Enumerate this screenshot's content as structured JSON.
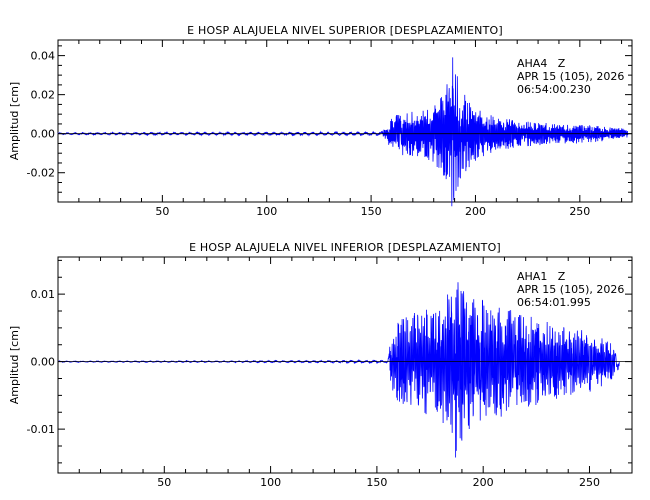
{
  "chart_data": [
    {
      "type": "line",
      "title": "E HOSP ALAJUELA NIVEL SUPERIOR [DESPLAZAMIENTO]",
      "ylabel": "Amplitud [cm]",
      "xlabel": "",
      "xlim": [
        0,
        275
      ],
      "ylim": [
        -0.035,
        0.048
      ],
      "xticks": [
        50,
        100,
        150,
        200,
        250
      ],
      "xtick_labels": [
        "50",
        "100",
        "150",
        "200",
        "250"
      ],
      "yticks": [
        0.04,
        0.02,
        0.0,
        -0.02
      ],
      "ytick_labels": [
        "0.04",
        "0.02",
        "0.00",
        "-0.02"
      ],
      "annotation": [
        "AHA4   Z",
        "APR 15 (105), 2026",
        "06:54:00.230"
      ],
      "line_color": "#0000ff",
      "grid": false,
      "series": [
        {
          "x": [
            0,
            20,
            40,
            60,
            80,
            100,
            120,
            140,
            155,
            158,
            160,
            165,
            170,
            175,
            180,
            185,
            188,
            189,
            190,
            192,
            195,
            200,
            205,
            210,
            220,
            230,
            240,
            250,
            260,
            270,
            273
          ],
          "envelope": [
            0.0005,
            0.0006,
            0.0007,
            0.0007,
            0.0008,
            0.0008,
            0.0009,
            0.0009,
            0.001,
            0.005,
            0.009,
            0.011,
            0.012,
            0.013,
            0.015,
            0.022,
            0.03,
            0.046,
            0.034,
            0.028,
            0.02,
            0.014,
            0.011,
            0.009,
            0.007,
            0.006,
            0.005,
            0.005,
            0.004,
            0.003,
            0.002
          ]
        }
      ]
    },
    {
      "type": "line",
      "title": "E HOSP ALAJUELA NIVEL INFERIOR [DESPLAZAMIENTO]",
      "ylabel": "Amplitud [cm]",
      "xlabel": "",
      "xlim": [
        0,
        270
      ],
      "ylim": [
        -0.0165,
        0.0155
      ],
      "xticks": [
        50,
        100,
        150,
        200,
        250
      ],
      "xtick_labels": [
        "50",
        "100",
        "150",
        "200",
        "250"
      ],
      "yticks": [
        0.01,
        0.0,
        -0.01
      ],
      "ytick_labels": [
        "0.01",
        "0.00",
        "-0.01"
      ],
      "annotation": [
        "AHA1   Z",
        "APR 15 (105), 2026",
        "06:54:01.995"
      ],
      "line_color": "#0000ff",
      "grid": false,
      "series": [
        {
          "x": [
            0,
            20,
            40,
            60,
            80,
            100,
            120,
            140,
            155,
            157,
            160,
            165,
            170,
            175,
            180,
            185,
            187,
            188,
            190,
            195,
            200,
            210,
            220,
            230,
            240,
            250,
            260,
            264
          ],
          "envelope": [
            0.0001,
            0.0001,
            0.0001,
            0.00012,
            0.00012,
            0.00015,
            0.00015,
            0.0002,
            0.0002,
            0.004,
            0.006,
            0.007,
            0.0075,
            0.008,
            0.009,
            0.011,
            0.0145,
            0.015,
            0.012,
            0.01,
            0.009,
            0.008,
            0.007,
            0.006,
            0.005,
            0.0045,
            0.003,
            0.001
          ]
        }
      ]
    }
  ]
}
